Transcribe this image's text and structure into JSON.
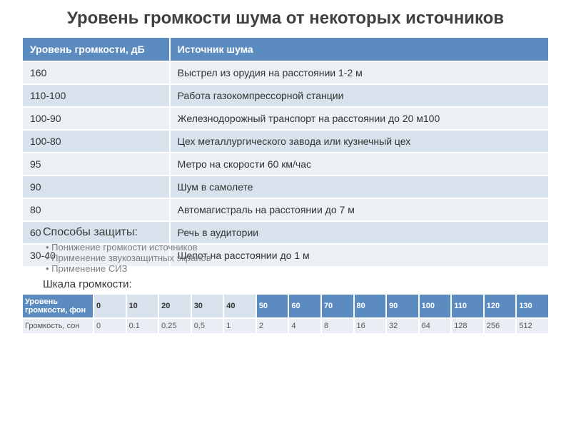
{
  "title": "Уровень громкости шума от некоторых источников",
  "mainTable": {
    "headers": [
      "Уровень громкости, дБ",
      "Источник шума"
    ],
    "rows": [
      [
        "160",
        "Выстрел из орудия на расстоянии 1-2 м"
      ],
      [
        "110-100",
        "Работа газокомпрессорной станции"
      ],
      [
        "100-90",
        "Железнодорожный транспорт на расстоянии до 20 м100"
      ],
      [
        "100-80",
        "Цех металлургического завода или кузнечный цех"
      ],
      [
        "95",
        "Метро на скорости 60 км/час"
      ],
      [
        "90",
        "Шум в самолете"
      ],
      [
        "80",
        "Автомагистраль на расстоянии до 7 м"
      ],
      [
        "60",
        "Речь в аудитории"
      ],
      [
        "30-40",
        "Шепот на расстоянии до 1 м"
      ]
    ],
    "headerBg": "#5b8bbf",
    "rowAltBg1": "#d7e2ec",
    "rowAltBg2": "#ebf0f5"
  },
  "ways": {
    "title": "Способы защиты:",
    "items": [
      "Понижение громкости источников",
      "Применение звукозащитных экранов",
      "Применение СИЗ"
    ]
  },
  "scale": {
    "title": "Шкала громкости:",
    "rowLabels": [
      "Уровень громкости, фон",
      "Громкость, сон"
    ],
    "phon": [
      "0",
      "10",
      "20",
      "30",
      "40",
      "50",
      "60",
      "70",
      "80",
      "90",
      "100",
      "110",
      "120",
      "130"
    ],
    "son": [
      "0",
      "0.1",
      "0.25",
      "0,5",
      "1",
      "2",
      "4",
      "8",
      "16",
      "32",
      "64",
      "128",
      "256",
      "512"
    ],
    "lightThreshold": 5,
    "headerBg": "#5b8bbf",
    "lightBg": "#d7e2ec",
    "bodyBg": "#e9eef4"
  }
}
